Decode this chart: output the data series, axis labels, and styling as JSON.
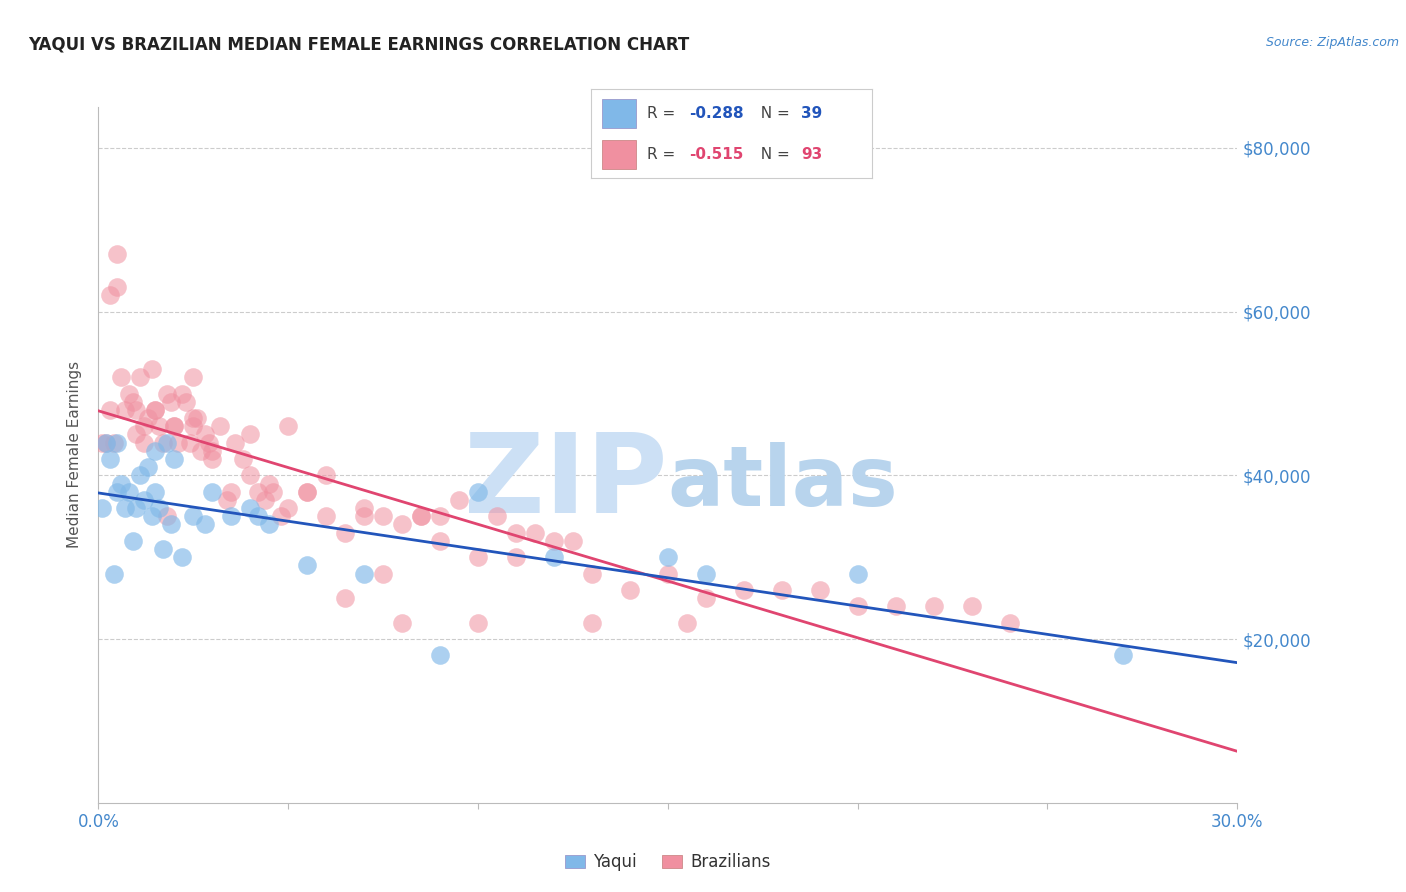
{
  "title": "YAQUI VS BRAZILIAN MEDIAN FEMALE EARNINGS CORRELATION CHART",
  "source_text": "Source: ZipAtlas.com",
  "ylabel": "Median Female Earnings",
  "xlim": [
    0.0,
    0.3
  ],
  "ylim": [
    0,
    85000
  ],
  "yticks": [
    0,
    20000,
    40000,
    60000,
    80000
  ],
  "ytick_labels": [
    "",
    "$20,000",
    "$40,000",
    "$60,000",
    "$80,000"
  ],
  "xticks": [
    0.0,
    0.05,
    0.1,
    0.15,
    0.2,
    0.25,
    0.3
  ],
  "yaqui_R": -0.288,
  "yaqui_N": 39,
  "brazilian_R": -0.515,
  "brazilian_N": 93,
  "yaqui_color": "#80b8e8",
  "brazilian_color": "#f090a0",
  "trend_blue": "#2255bb",
  "trend_pink": "#e04570",
  "axis_color": "#4488cc",
  "background_color": "#ffffff",
  "watermark_color": "#cce0f5",
  "yaqui_x": [
    0.001,
    0.002,
    0.003,
    0.004,
    0.005,
    0.005,
    0.006,
    0.007,
    0.008,
    0.009,
    0.01,
    0.011,
    0.012,
    0.013,
    0.014,
    0.015,
    0.015,
    0.016,
    0.017,
    0.018,
    0.019,
    0.02,
    0.022,
    0.025,
    0.028,
    0.03,
    0.035,
    0.04,
    0.042,
    0.045,
    0.055,
    0.07,
    0.09,
    0.1,
    0.12,
    0.15,
    0.16,
    0.2,
    0.27
  ],
  "yaqui_y": [
    36000,
    44000,
    42000,
    28000,
    38000,
    44000,
    39000,
    36000,
    38000,
    32000,
    36000,
    40000,
    37000,
    41000,
    35000,
    38000,
    43000,
    36000,
    31000,
    44000,
    34000,
    42000,
    30000,
    35000,
    34000,
    38000,
    35000,
    36000,
    35000,
    34000,
    29000,
    28000,
    18000,
    38000,
    30000,
    30000,
    28000,
    28000,
    18000
  ],
  "brazilian_x": [
    0.001,
    0.002,
    0.003,
    0.003,
    0.004,
    0.005,
    0.006,
    0.007,
    0.008,
    0.009,
    0.01,
    0.011,
    0.012,
    0.013,
    0.014,
    0.015,
    0.016,
    0.017,
    0.018,
    0.019,
    0.02,
    0.021,
    0.022,
    0.023,
    0.024,
    0.025,
    0.026,
    0.027,
    0.028,
    0.029,
    0.03,
    0.032,
    0.034,
    0.036,
    0.038,
    0.04,
    0.042,
    0.044,
    0.046,
    0.048,
    0.05,
    0.055,
    0.06,
    0.065,
    0.07,
    0.075,
    0.08,
    0.085,
    0.09,
    0.095,
    0.1,
    0.105,
    0.11,
    0.115,
    0.12,
    0.125,
    0.13,
    0.14,
    0.15,
    0.16,
    0.17,
    0.18,
    0.19,
    0.2,
    0.21,
    0.22,
    0.23,
    0.24,
    0.005,
    0.01,
    0.015,
    0.02,
    0.025,
    0.03,
    0.04,
    0.05,
    0.06,
    0.07,
    0.08,
    0.09,
    0.1,
    0.012,
    0.018,
    0.025,
    0.035,
    0.045,
    0.055,
    0.065,
    0.075,
    0.085,
    0.11,
    0.13,
    0.155
  ],
  "brazilian_y": [
    44000,
    44000,
    62000,
    48000,
    44000,
    63000,
    52000,
    48000,
    50000,
    49000,
    45000,
    52000,
    46000,
    47000,
    53000,
    48000,
    46000,
    44000,
    50000,
    49000,
    46000,
    44000,
    50000,
    49000,
    44000,
    46000,
    47000,
    43000,
    45000,
    44000,
    42000,
    46000,
    37000,
    44000,
    42000,
    40000,
    38000,
    37000,
    38000,
    35000,
    36000,
    38000,
    40000,
    33000,
    36000,
    35000,
    34000,
    35000,
    35000,
    37000,
    22000,
    35000,
    33000,
    33000,
    32000,
    32000,
    28000,
    26000,
    28000,
    25000,
    26000,
    26000,
    26000,
    24000,
    24000,
    24000,
    24000,
    22000,
    67000,
    48000,
    48000,
    46000,
    52000,
    43000,
    45000,
    46000,
    35000,
    35000,
    22000,
    32000,
    30000,
    44000,
    35000,
    47000,
    38000,
    39000,
    38000,
    25000,
    28000,
    35000,
    30000,
    22000,
    22000
  ]
}
